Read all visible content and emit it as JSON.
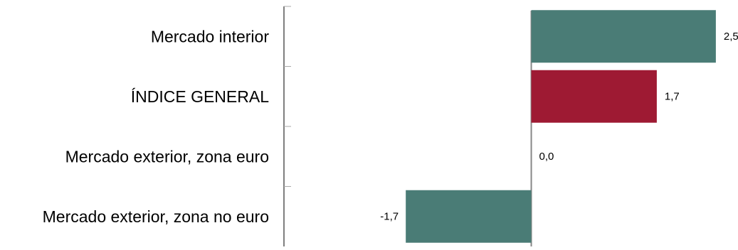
{
  "chart_data": {
    "type": "bar",
    "orientation": "horizontal",
    "categories": [
      "Mercado interior",
      "ÍNDICE GENERAL",
      "Mercado exterior, zona euro",
      "Mercado exterior, zona no euro"
    ],
    "values": [
      2.5,
      1.7,
      0.0,
      -1.7
    ],
    "value_labels": [
      "2,5",
      "1,7",
      "0,0",
      "-1,7"
    ],
    "bar_colors": [
      "#4a7c76",
      "#9e1a33",
      "#4a7c76",
      "#4a7c76"
    ],
    "title": "",
    "xlabel": "",
    "ylabel": "",
    "xlim": [
      -3.35,
      2.8
    ],
    "grid": false,
    "legend": "none"
  }
}
